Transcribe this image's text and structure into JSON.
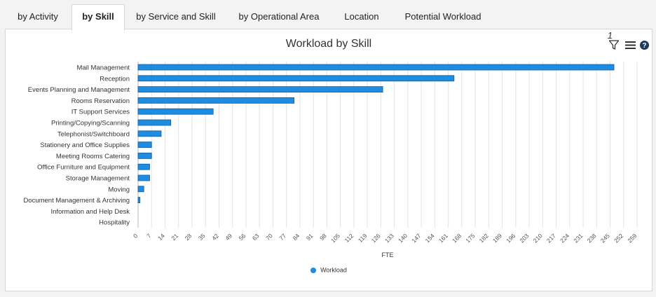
{
  "tabs": [
    {
      "label": "by Activity",
      "active": false
    },
    {
      "label": "by Skill",
      "active": true
    },
    {
      "label": "by Service and Skill",
      "active": false
    },
    {
      "label": "by Operational Area",
      "active": false
    },
    {
      "label": "Location",
      "active": false
    },
    {
      "label": "Potential Workload",
      "active": false
    }
  ],
  "toolbar": {
    "filter_count": "1",
    "icons": [
      "filter-icon",
      "menu-icon",
      "help-icon"
    ]
  },
  "colors": {
    "bar": "#1f8ce0",
    "bar_stroke": "#0f5fa8",
    "grid": "#e3e3e3"
  },
  "chart_data": {
    "type": "bar",
    "orientation": "horizontal",
    "title": "Workload by Skill",
    "xlabel": "FTE",
    "ylabel": "",
    "categories": [
      "Mail Management",
      "Reception",
      "Events Planning and Management",
      "Rooms Reservation",
      "IT Support Services",
      "Printing/Copying/Scanning",
      "Telephonist/Switchboard",
      "Stationery and Office Supplies",
      "Meeting Rooms Catering",
      "Office Furniture and Equipment",
      "Storage Management",
      "Moving",
      "Document Management & Archiving",
      "Information and Help Desk",
      "Hospitality"
    ],
    "series": [
      {
        "name": "Workload",
        "values": [
          247,
          164,
          127,
          81,
          39,
          17,
          12,
          7,
          7,
          6,
          6,
          3,
          1,
          0,
          0
        ]
      }
    ],
    "xlim": [
      0,
      259
    ],
    "xticks": [
      0,
      7,
      14,
      21,
      28,
      35,
      42,
      49,
      56,
      63,
      70,
      77,
      84,
      91,
      98,
      105,
      112,
      119,
      126,
      133,
      140,
      147,
      154,
      161,
      168,
      175,
      182,
      189,
      196,
      203,
      210,
      217,
      224,
      231,
      238,
      245,
      252,
      259
    ],
    "grid": true,
    "legend": "bottom-center"
  }
}
